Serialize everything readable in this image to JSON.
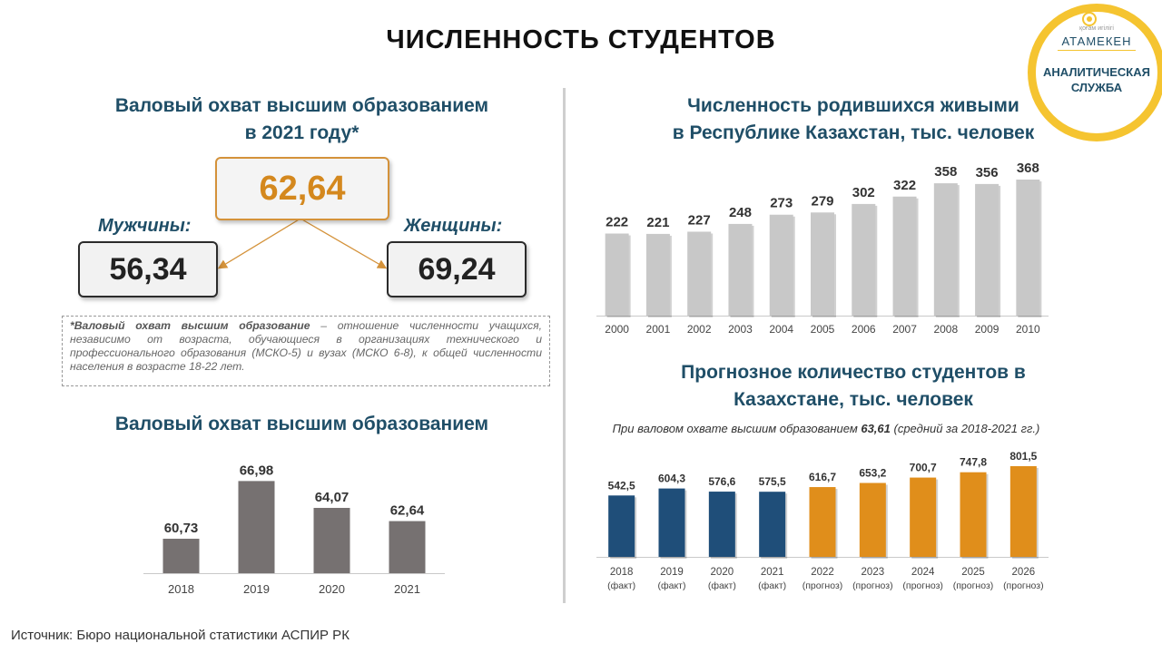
{
  "header": {
    "title": "ЧИСЛЕННОСТЬ СТУДЕНТОВ"
  },
  "logo": {
    "small_text": "қоғам  игілігі",
    "name": "АТАМЕКЕН",
    "subtitle_line1": "АНАЛИТИЧЕСКАЯ",
    "subtitle_line2": "СЛУЖБА",
    "color_ring": "#f5c430",
    "color_text": "#1f4e67"
  },
  "gross_enrollment_2021": {
    "title_line1": "Валовый охват высшим образованием",
    "title_line2": "в 2021 году*",
    "total": "62,64",
    "men_label": "Мужчины:",
    "men_value": "56,34",
    "women_label": "Женщины:",
    "women_value": "69,24",
    "footnote_bold": "*Валовый охват высшим образование",
    "footnote_text": " – отношение численности учащихся, независимо от возраста, обучающиеся в организациях технического и профессионального образования (МСКО-5) и вузах (МСКО 6-8), к общей численности населения в возрасте 18-22 лет."
  },
  "gross_enrollment_chart_title": "Валовый охват высшим образованием",
  "births_chart_title_line1": "Численность родившихся живыми",
  "births_chart_title_line2": "в Республике Казахстан, тыс. человек",
  "forecast_chart_title_line1": "Прогнозное количество студентов  в",
  "forecast_chart_title_line2": "Казахстане, тыс. человек",
  "forecast_note_prefix": "При валовом охвате высшим образованием ",
  "forecast_note_value": "63,61",
  "forecast_note_suffix": " (средний за 2018-2021 гг.)",
  "source": "Источник:  Бюро национальной  статистики  АСПИР РК",
  "chart_data": [
    {
      "id": "gross",
      "type": "bar",
      "title": "Валовый охват высшим образованием",
      "categories": [
        "2018",
        "2019",
        "2020",
        "2021"
      ],
      "values": [
        60.73,
        66.98,
        64.07,
        62.64
      ],
      "labels": [
        "60,73",
        "66,98",
        "64,07",
        "62,64"
      ],
      "ylim": [
        57,
        68
      ],
      "color": "#767171",
      "grid": false
    },
    {
      "id": "births",
      "type": "bar",
      "title": "Численность родившихся живыми в Республике Казахстан, тыс. человек",
      "categories": [
        "2000",
        "2001",
        "2002",
        "2003",
        "2004",
        "2005",
        "2006",
        "2007",
        "2008",
        "2009",
        "2010"
      ],
      "values": [
        222,
        221,
        227,
        248,
        273,
        279,
        302,
        322,
        358,
        356,
        368
      ],
      "labels": [
        "222",
        "221",
        "227",
        "248",
        "273",
        "279",
        "302",
        "322",
        "358",
        "356",
        "368"
      ],
      "ylim": [
        0,
        368
      ],
      "color": "#c8c8c8",
      "grid": false
    },
    {
      "id": "forecast",
      "type": "bar",
      "title": "Прогнозное количество студентов в Казахстане, тыс. человек",
      "categories": [
        "2018",
        "2019",
        "2020",
        "2021",
        "2022",
        "2023",
        "2024",
        "2025",
        "2026"
      ],
      "category_sublabels": [
        "(факт)",
        "(факт)",
        "(факт)",
        "(факт)",
        "(прогноз)",
        "(прогноз)",
        "(прогноз)",
        "(прогноз)",
        "(прогноз)"
      ],
      "values": [
        542.5,
        604.3,
        576.6,
        575.5,
        616.7,
        653.2,
        700.7,
        747.8,
        801.5
      ],
      "labels": [
        "542,5",
        "604,3",
        "576,6",
        "575,5",
        "616,7",
        "653,2",
        "700,7",
        "747,8",
        "801,5"
      ],
      "ylim": [
        0,
        801.5
      ],
      "color_fact": "#1f4e79",
      "color_forecast": "#e08e1b",
      "grid": false
    }
  ]
}
